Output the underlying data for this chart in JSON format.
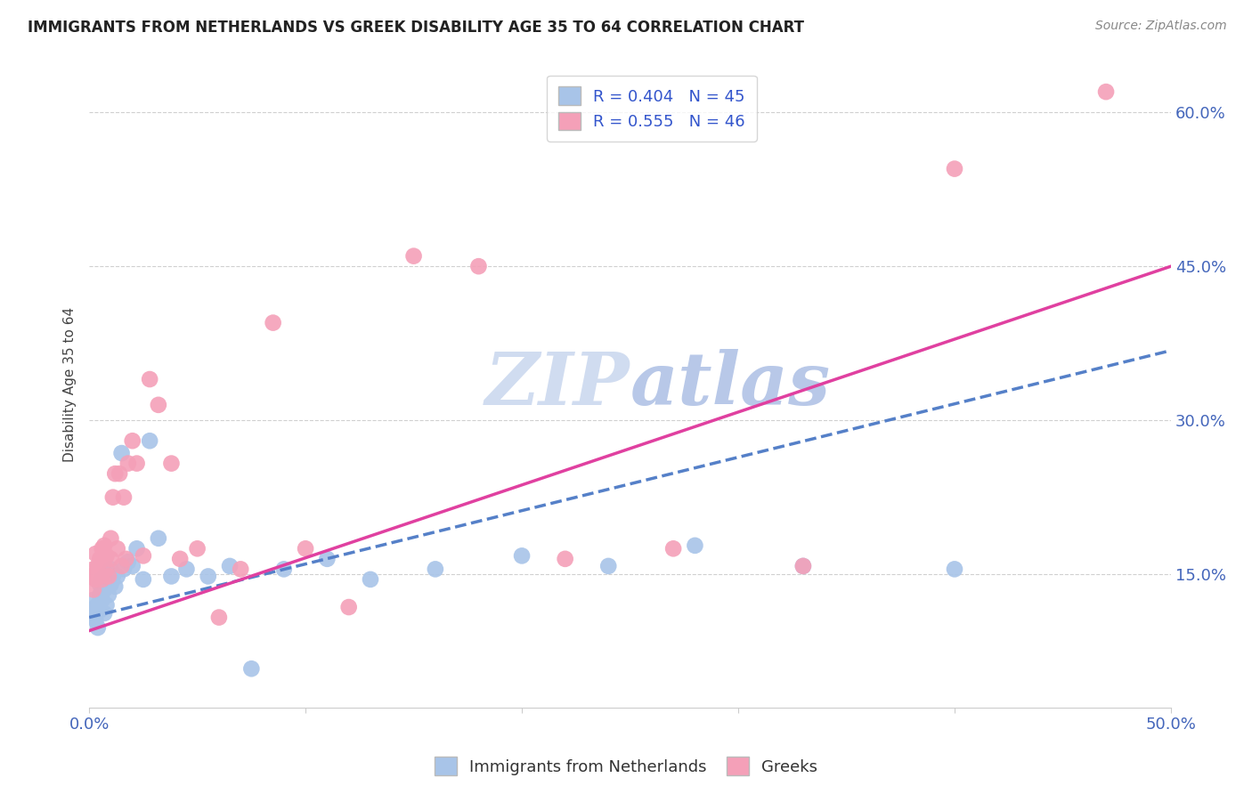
{
  "title": "IMMIGRANTS FROM NETHERLANDS VS GREEK DISABILITY AGE 35 TO 64 CORRELATION CHART",
  "source": "Source: ZipAtlas.com",
  "ylabel": "Disability Age 35 to 64",
  "ytick_labels": [
    "15.0%",
    "30.0%",
    "45.0%",
    "60.0%"
  ],
  "ytick_values": [
    0.15,
    0.3,
    0.45,
    0.6
  ],
  "xlim": [
    0.0,
    0.5
  ],
  "ylim": [
    0.02,
    0.65
  ],
  "color_netherlands": "#a8c4e8",
  "color_greeks": "#f4a0b8",
  "trendline_netherlands_color": "#5580c8",
  "trendline_greeks_color": "#e040a0",
  "watermark_color": "#d0dcf0",
  "netherlands_x": [
    0.001,
    0.002,
    0.002,
    0.003,
    0.003,
    0.004,
    0.004,
    0.005,
    0.005,
    0.005,
    0.006,
    0.006,
    0.007,
    0.007,
    0.008,
    0.008,
    0.009,
    0.009,
    0.01,
    0.01,
    0.011,
    0.012,
    0.013,
    0.015,
    0.016,
    0.018,
    0.02,
    0.022,
    0.025,
    0.028,
    0.032,
    0.038,
    0.045,
    0.055,
    0.065,
    0.075,
    0.09,
    0.11,
    0.13,
    0.16,
    0.2,
    0.24,
    0.28,
    0.33,
    0.4
  ],
  "netherlands_y": [
    0.115,
    0.125,
    0.108,
    0.118,
    0.105,
    0.12,
    0.098,
    0.13,
    0.115,
    0.14,
    0.125,
    0.145,
    0.112,
    0.135,
    0.12,
    0.15,
    0.13,
    0.145,
    0.14,
    0.155,
    0.148,
    0.138,
    0.148,
    0.268,
    0.155,
    0.162,
    0.158,
    0.175,
    0.145,
    0.28,
    0.185,
    0.148,
    0.155,
    0.148,
    0.158,
    0.058,
    0.155,
    0.165,
    0.145,
    0.155,
    0.168,
    0.158,
    0.178,
    0.158,
    0.155
  ],
  "greeks_x": [
    0.001,
    0.002,
    0.002,
    0.003,
    0.003,
    0.004,
    0.004,
    0.005,
    0.005,
    0.006,
    0.006,
    0.007,
    0.007,
    0.008,
    0.008,
    0.009,
    0.01,
    0.01,
    0.011,
    0.012,
    0.013,
    0.014,
    0.015,
    0.016,
    0.017,
    0.018,
    0.02,
    0.022,
    0.025,
    0.028,
    0.032,
    0.038,
    0.042,
    0.05,
    0.06,
    0.07,
    0.085,
    0.1,
    0.12,
    0.15,
    0.18,
    0.22,
    0.27,
    0.33,
    0.4,
    0.47
  ],
  "greeks_y": [
    0.148,
    0.155,
    0.135,
    0.17,
    0.145,
    0.158,
    0.15,
    0.148,
    0.165,
    0.175,
    0.145,
    0.165,
    0.178,
    0.155,
    0.168,
    0.148,
    0.185,
    0.165,
    0.225,
    0.248,
    0.175,
    0.248,
    0.158,
    0.225,
    0.165,
    0.258,
    0.28,
    0.258,
    0.168,
    0.34,
    0.315,
    0.258,
    0.165,
    0.175,
    0.108,
    0.155,
    0.395,
    0.175,
    0.118,
    0.46,
    0.45,
    0.165,
    0.175,
    0.158,
    0.545,
    0.62
  ],
  "trendline_nl_x0": 0.0,
  "trendline_nl_y0": 0.108,
  "trendline_nl_x1": 0.5,
  "trendline_nl_y1": 0.368,
  "trendline_gr_x0": 0.0,
  "trendline_gr_y0": 0.095,
  "trendline_gr_x1": 0.5,
  "trendline_gr_y1": 0.45
}
